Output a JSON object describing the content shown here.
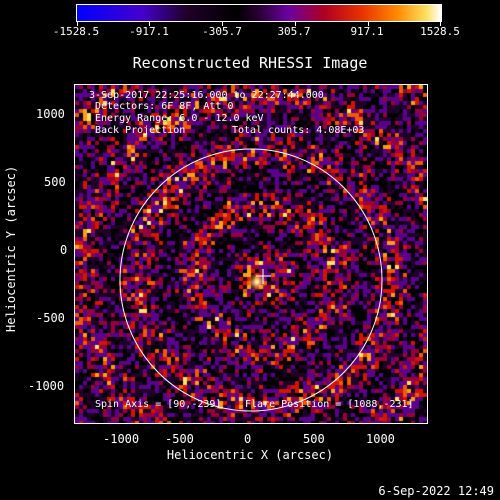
{
  "colorbar": {
    "labels": [
      "-1528.5",
      "-917.1",
      "-305.7",
      "305.7",
      "917.1",
      "1528.5"
    ]
  },
  "plot": {
    "title": "Reconstructed RHESSI Image",
    "time_range": "3-Sep-2017 22:25:16.000 to 22:27:44.000",
    "detectors": "Detectors: 6F 8F, Att 0",
    "energy": "Energy Range: 6.0 - 12.0 keV",
    "method": "Back Projection",
    "counts": "Total counts: 4.08E+03",
    "spin_axis": "Spin Axis = [90,-239]",
    "flare_position": "Flare Position = [1088,-231]",
    "xlabel": "Heliocentric X (arcsec)",
    "ylabel": "Heliocentric Y (arcsec)",
    "x_ticks": [
      "-1000",
      "-500",
      "0",
      "500",
      "1000"
    ],
    "y_ticks": [
      "1000",
      "500",
      "0",
      "-500",
      "-1000"
    ]
  },
  "footer": {
    "timestamp": "6-Sep-2022 12:49"
  },
  "colors": {
    "limb": "#ffffff",
    "background": "#000000"
  }
}
